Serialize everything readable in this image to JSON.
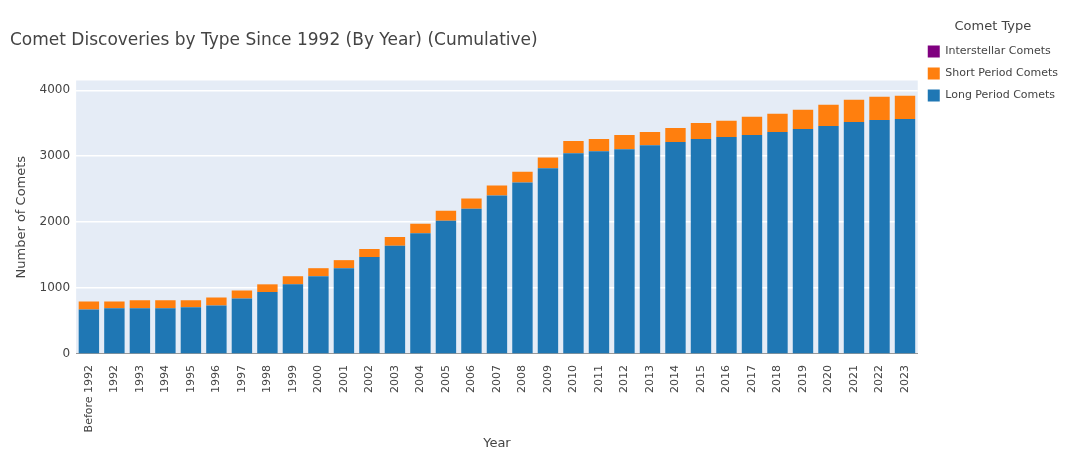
{
  "chart_data": {
    "type": "bar",
    "title": "Comet Discoveries by Type Since 1992 (By Year) (Cumulative)",
    "xlabel": "Year",
    "ylabel": "Number of Comets",
    "legend_title": "Comet Type",
    "categories": [
      "Before 1992",
      "1992",
      "1993",
      "1994",
      "1995",
      "1996",
      "1997",
      "1998",
      "1999",
      "2000",
      "2001",
      "2002",
      "2003",
      "2004",
      "2005",
      "2006",
      "2007",
      "2008",
      "2009",
      "2010",
      "2011",
      "2012",
      "2013",
      "2014",
      "2015",
      "2016",
      "2017",
      "2018",
      "2019",
      "2020",
      "2021",
      "2022",
      "2023"
    ],
    "stacked": true,
    "series": [
      {
        "name": "Long Period Comets",
        "color": "#1f77b4",
        "values": [
          673,
          694,
          694,
          694,
          709,
          735,
          842,
          939,
          1056,
          1179,
          1301,
          1469,
          1643,
          1832,
          2020,
          2204,
          2403,
          2602,
          2816,
          3046,
          3077,
          3107,
          3168,
          3214,
          3260,
          3291,
          3321,
          3367,
          3413,
          3459,
          3520,
          3551,
          3566
        ]
      },
      {
        "name": "Short Period Comets",
        "color": "#ff7f0e",
        "values": [
          123,
          102,
          122,
          122,
          107,
          122,
          122,
          117,
          123,
          122,
          122,
          123,
          133,
          142,
          153,
          153,
          153,
          163,
          164,
          184,
          183,
          214,
          199,
          215,
          245,
          245,
          276,
          276,
          291,
          322,
          337,
          352,
          352
        ]
      },
      {
        "name": "Interstellar Comets",
        "color": "#800080",
        "values": [
          null,
          null,
          null,
          null,
          null,
          null,
          null,
          null,
          null,
          null,
          null,
          null,
          null,
          null,
          null,
          null,
          null,
          null,
          null,
          null,
          null,
          null,
          null,
          null,
          null,
          null,
          null,
          null,
          null,
          null,
          null,
          null,
          null
        ]
      }
    ],
    "ylim": [
      0,
      4150
    ],
    "yticks": [
      0,
      1000,
      2000,
      3000,
      4000
    ],
    "grid": "y",
    "legend": "top right"
  }
}
